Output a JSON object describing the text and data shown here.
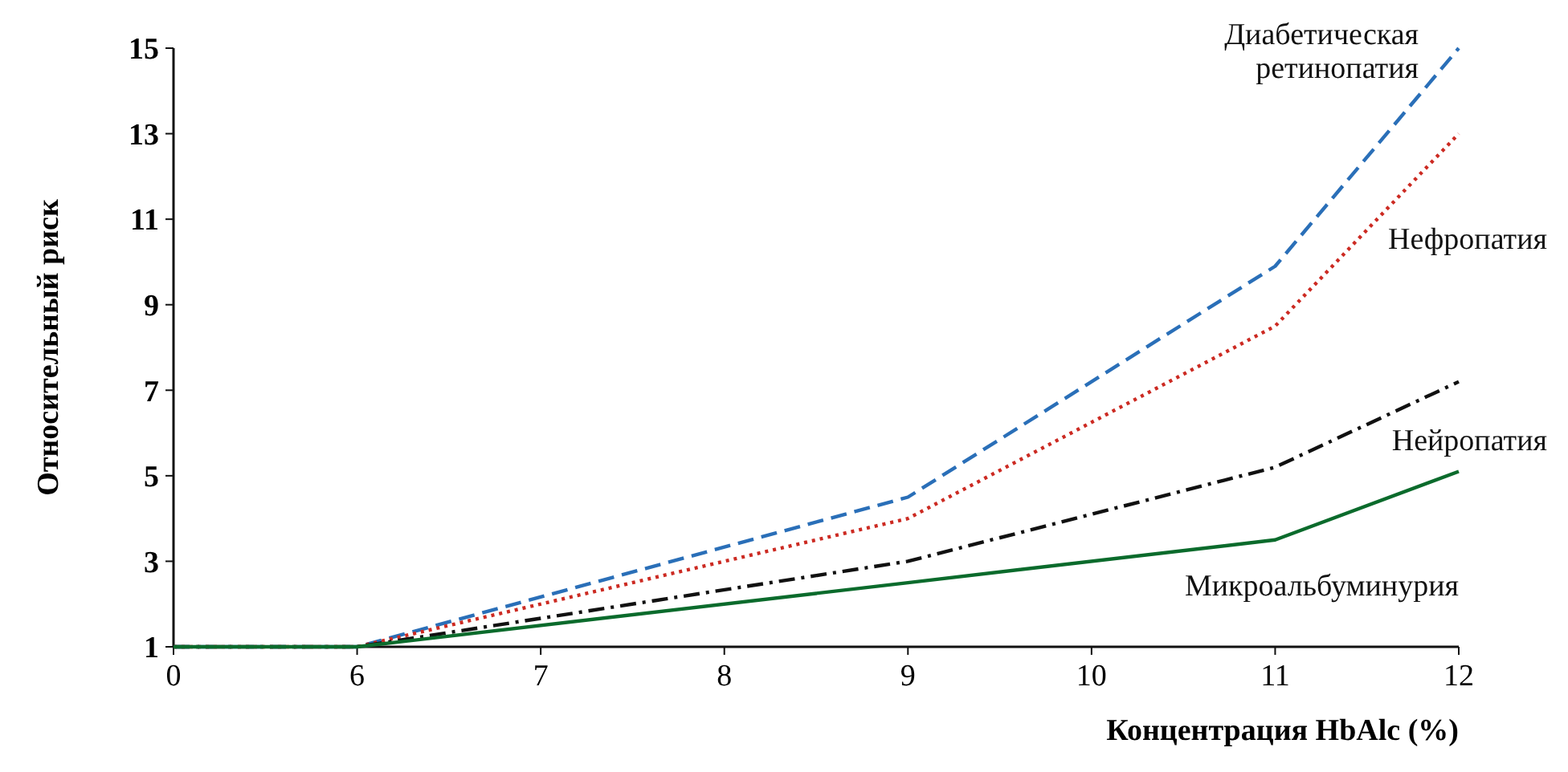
{
  "chart_data": {
    "type": "line",
    "xlabel": "Концентрация HbAlc (%)",
    "ylabel": "Относительный риск",
    "categories": [
      "0",
      "6",
      "7",
      "8",
      "9",
      "10",
      "11",
      "12"
    ],
    "ylim": [
      1,
      15
    ],
    "yticks": [
      1,
      3,
      5,
      7,
      9,
      11,
      13,
      15
    ],
    "grid": false,
    "series": [
      {
        "name": "Диабетическая ретинопатия",
        "color": "#2a6fb8",
        "line_style": "dashed",
        "values": [
          1,
          1,
          null,
          null,
          4.5,
          null,
          9.9,
          15
        ]
      },
      {
        "name": "Нефропатия",
        "color": "#cc2a22",
        "line_style": "dotted",
        "values": [
          1,
          1,
          null,
          null,
          4,
          null,
          8.5,
          13
        ]
      },
      {
        "name": "Нейропатия",
        "color": "#111111",
        "line_style": "dashdot",
        "values": [
          1,
          1,
          null,
          null,
          3,
          null,
          5.2,
          7.2
        ]
      },
      {
        "name": "Микроальбуминурия",
        "color": "#0b6b2c",
        "line_style": "solid",
        "values": [
          1,
          1,
          null,
          null,
          2.5,
          null,
          3.5,
          5.1
        ]
      }
    ]
  }
}
